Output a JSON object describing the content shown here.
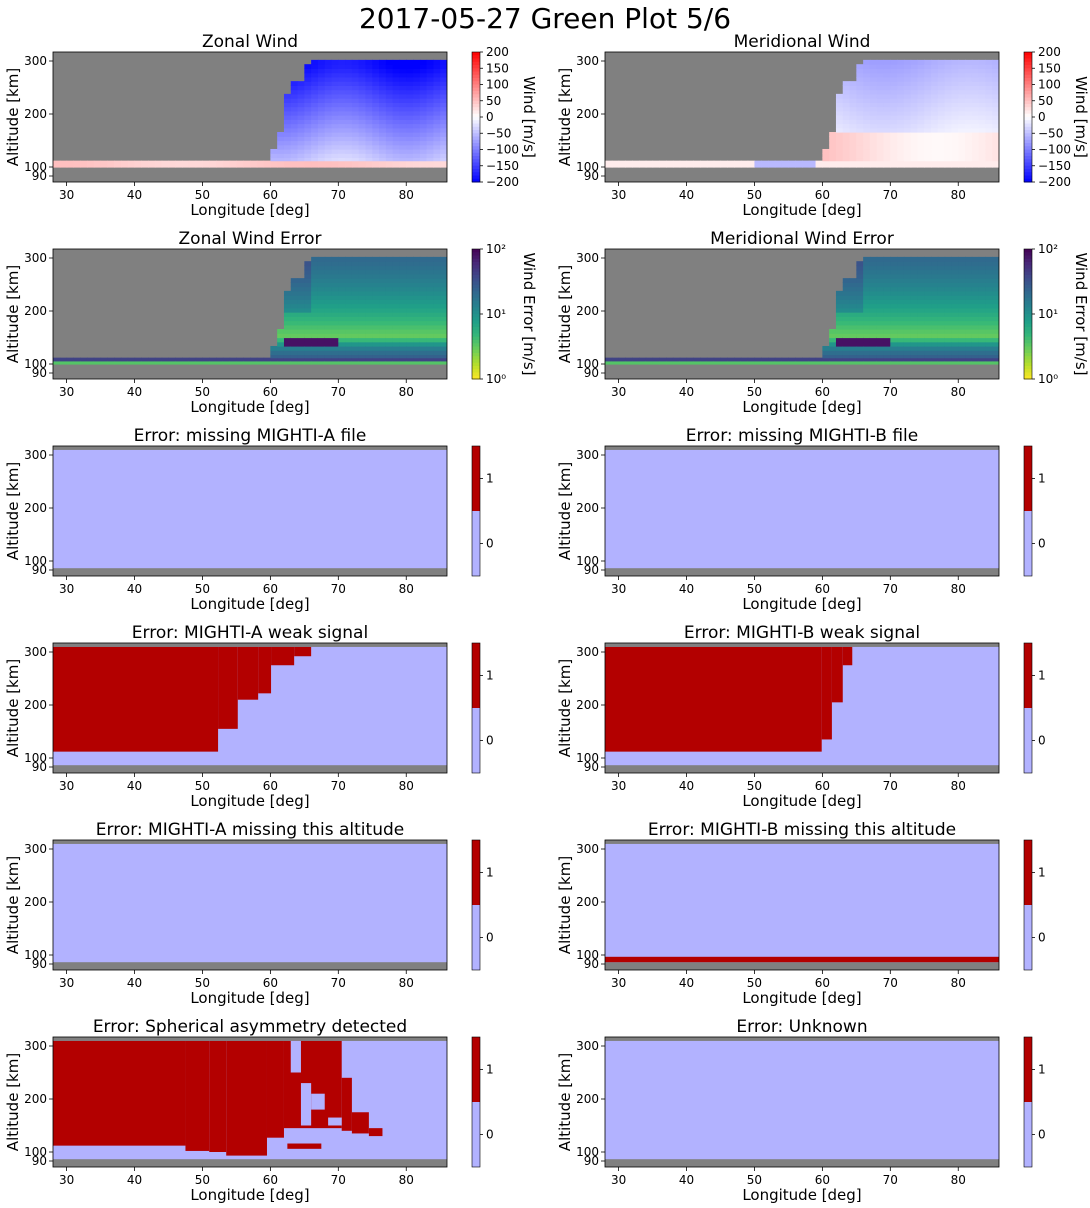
{
  "figure": {
    "title": "2017-05-27 Green Plot 5/6"
  },
  "colors": {
    "missing": "#808080",
    "flag_zero": "#b2b2ff",
    "flag_one": "#b30000",
    "wind_neg": "#0000ff",
    "wind_mid": "#ffffff",
    "wind_pos": "#ff0000"
  },
  "chart_data": [
    {
      "type": "heatmap",
      "title": "Zonal Wind",
      "xlabel": "Longitude [deg]",
      "ylabel": "Altitude [km]",
      "xlim": [
        28,
        86
      ],
      "ylim": [
        82,
        316
      ],
      "xticks": [
        "30",
        "40",
        "50",
        "60",
        "70",
        "80"
      ],
      "yticks": [
        "90",
        "100",
        "200",
        "300"
      ],
      "colorbar": {
        "label": "Wind [m/s]",
        "range": [
          -200,
          200
        ],
        "colormap": "bwr",
        "ticks": [
          "200",
          "150",
          "100",
          "50",
          "0",
          "−50",
          "−100",
          "−150",
          "−200"
        ]
      },
      "field": "zonal"
    },
    {
      "type": "heatmap",
      "title": "Meridional Wind",
      "xlabel": "Longitude [deg]",
      "ylabel": "Altitude [km]",
      "xlim": [
        28,
        86
      ],
      "ylim": [
        82,
        316
      ],
      "xticks": [
        "30",
        "40",
        "50",
        "60",
        "70",
        "80"
      ],
      "yticks": [
        "90",
        "100",
        "200",
        "300"
      ],
      "colorbar": {
        "label": "Wind [m/s]",
        "range": [
          -200,
          200
        ],
        "colormap": "bwr",
        "ticks": [
          "200",
          "150",
          "100",
          "50",
          "0",
          "−50",
          "−100",
          "−150",
          "−200"
        ]
      },
      "field": "meridional"
    },
    {
      "type": "heatmap",
      "title": "Zonal Wind Error",
      "xlabel": "Longitude [deg]",
      "ylabel": "Altitude [km]",
      "xlim": [
        28,
        86
      ],
      "ylim": [
        82,
        316
      ],
      "xticks": [
        "30",
        "40",
        "50",
        "60",
        "70",
        "80"
      ],
      "yticks": [
        "90",
        "100",
        "200",
        "300"
      ],
      "colorbar": {
        "label": "Wind Error [m/s]",
        "scale": "log",
        "range": [
          1,
          100
        ],
        "colormap": "viridis_r",
        "ticks": [
          "10²",
          "10¹",
          "10⁰"
        ]
      },
      "field": "error"
    },
    {
      "type": "heatmap",
      "title": "Meridional Wind Error",
      "xlabel": "Longitude [deg]",
      "ylabel": "Altitude [km]",
      "xlim": [
        28,
        86
      ],
      "ylim": [
        82,
        316
      ],
      "xticks": [
        "30",
        "40",
        "50",
        "60",
        "70",
        "80"
      ],
      "yticks": [
        "90",
        "100",
        "200",
        "300"
      ],
      "colorbar": {
        "label": "Wind Error [m/s]",
        "scale": "log",
        "range": [
          1,
          100
        ],
        "colormap": "viridis_r",
        "ticks": [
          "10²",
          "10¹",
          "10⁰"
        ]
      },
      "field": "error"
    },
    {
      "type": "heatmap",
      "title": "Error: missing MIGHTI-A file",
      "xlabel": "Longitude [deg]",
      "ylabel": "Altitude [km]",
      "xlim": [
        28,
        86
      ],
      "ylim": [
        82,
        316
      ],
      "xticks": [
        "30",
        "40",
        "50",
        "60",
        "70",
        "80"
      ],
      "yticks": [
        "90",
        "100",
        "200",
        "300"
      ],
      "colorbar": {
        "ticks": [
          "1",
          "0"
        ],
        "categories": [
          0,
          1
        ]
      },
      "flag_regions": []
    },
    {
      "type": "heatmap",
      "title": "Error: missing MIGHTI-B file",
      "xlabel": "Longitude [deg]",
      "ylabel": "Altitude [km]",
      "xlim": [
        28,
        86
      ],
      "ylim": [
        82,
        316
      ],
      "xticks": [
        "30",
        "40",
        "50",
        "60",
        "70",
        "80"
      ],
      "yticks": [
        "90",
        "100",
        "200",
        "300"
      ],
      "colorbar": {
        "ticks": [
          "1",
          "0"
        ],
        "categories": [
          0,
          1
        ]
      },
      "flag_regions": []
    },
    {
      "type": "heatmap",
      "title": "Error: MIGHTI-A weak signal",
      "xlabel": "Longitude [deg]",
      "ylabel": "Altitude [km]",
      "xlim": [
        28,
        86
      ],
      "ylim": [
        82,
        316
      ],
      "xticks": [
        "30",
        "40",
        "50",
        "60",
        "70",
        "80"
      ],
      "yticks": [
        "90",
        "100",
        "200",
        "300"
      ],
      "colorbar": {
        "ticks": [
          "1",
          "0"
        ],
        "categories": [
          0,
          1
        ]
      },
      "flag_regions": [
        {
          "lon": [
            28,
            52.3
          ],
          "alt": [
            112,
            309
          ]
        },
        {
          "lon": [
            52.3,
            55.2
          ],
          "alt": [
            155,
            309
          ]
        },
        {
          "lon": [
            55.2,
            58.2
          ],
          "alt": [
            210,
            309
          ]
        },
        {
          "lon": [
            58.2,
            60.1
          ],
          "alt": [
            222,
            309
          ]
        },
        {
          "lon": [
            60.1,
            63.5
          ],
          "alt": [
            275,
            309
          ]
        },
        {
          "lon": [
            63.5,
            66.0
          ],
          "alt": [
            292,
            309
          ]
        }
      ]
    },
    {
      "type": "heatmap",
      "title": "Error: MIGHTI-B weak signal",
      "xlabel": "Longitude [deg]",
      "ylabel": "Altitude [km]",
      "xlim": [
        28,
        86
      ],
      "ylim": [
        82,
        316
      ],
      "xticks": [
        "30",
        "40",
        "50",
        "60",
        "70",
        "80"
      ],
      "yticks": [
        "90",
        "100",
        "200",
        "300"
      ],
      "colorbar": {
        "ticks": [
          "1",
          "0"
        ],
        "categories": [
          0,
          1
        ]
      },
      "flag_regions": [
        {
          "lon": [
            28,
            59.9
          ],
          "alt": [
            112,
            309
          ]
        },
        {
          "lon": [
            59.9,
            61.4
          ],
          "alt": [
            135,
            309
          ]
        },
        {
          "lon": [
            61.4,
            63.0
          ],
          "alt": [
            205,
            309
          ]
        },
        {
          "lon": [
            63.0,
            64.4
          ],
          "alt": [
            275,
            309
          ]
        }
      ]
    },
    {
      "type": "heatmap",
      "title": "Error: MIGHTI-A missing this altitude",
      "xlabel": "Longitude [deg]",
      "ylabel": "Altitude [km]",
      "xlim": [
        28,
        86
      ],
      "ylim": [
        82,
        316
      ],
      "xticks": [
        "30",
        "40",
        "50",
        "60",
        "70",
        "80"
      ],
      "yticks": [
        "90",
        "100",
        "200",
        "300"
      ],
      "colorbar": {
        "ticks": [
          "1",
          "0"
        ],
        "categories": [
          0,
          1
        ]
      },
      "flag_regions": []
    },
    {
      "type": "heatmap",
      "title": "Error: MIGHTI-B missing this altitude",
      "xlabel": "Longitude [deg]",
      "ylabel": "Altitude [km]",
      "xlim": [
        28,
        86
      ],
      "ylim": [
        82,
        316
      ],
      "xticks": [
        "30",
        "40",
        "50",
        "60",
        "70",
        "80"
      ],
      "yticks": [
        "90",
        "100",
        "200",
        "300"
      ],
      "colorbar": {
        "ticks": [
          "1",
          "0"
        ],
        "categories": [
          0,
          1
        ]
      },
      "flag_regions": [
        {
          "lon": [
            28,
            86
          ],
          "alt": [
            92,
            98
          ]
        }
      ]
    },
    {
      "type": "heatmap",
      "title": "Error: Spherical asymmetry detected",
      "xlabel": "Longitude [deg]",
      "ylabel": "Altitude [km]",
      "xlim": [
        28,
        86
      ],
      "ylim": [
        82,
        316
      ],
      "xticks": [
        "30",
        "40",
        "50",
        "60",
        "70",
        "80"
      ],
      "yticks": [
        "90",
        "100",
        "200",
        "300"
      ],
      "colorbar": {
        "ticks": [
          "1",
          "0"
        ],
        "categories": [
          0,
          1
        ]
      },
      "flag_regions": [
        {
          "lon": [
            28,
            47.5
          ],
          "alt": [
            112,
            309
          ]
        },
        {
          "lon": [
            47.5,
            51.0
          ],
          "alt": [
            102,
            309
          ]
        },
        {
          "lon": [
            51.0,
            53.5
          ],
          "alt": [
            100,
            309
          ]
        },
        {
          "lon": [
            53.5,
            59.5
          ],
          "alt": [
            96,
            309
          ]
        },
        {
          "lon": [
            59.5,
            62.0
          ],
          "alt": [
            127,
            309
          ]
        },
        {
          "lon": [
            62.0,
            70.5
          ],
          "alt": [
            145,
            309
          ]
        },
        {
          "lon": [
            62.5,
            67.5
          ],
          "alt": [
            106,
            116
          ]
        },
        {
          "lon": [
            70.5,
            72.0
          ],
          "alt": [
            140,
            240
          ]
        },
        {
          "lon": [
            72.0,
            74.5
          ],
          "alt": [
            135,
            175
          ]
        },
        {
          "lon": [
            74.5,
            76.5
          ],
          "alt": [
            130,
            145
          ]
        }
      ],
      "clear_regions": [
        {
          "lon": [
            63.0,
            64.5
          ],
          "alt": [
            250,
            309
          ]
        },
        {
          "lon": [
            64.5,
            66.0
          ],
          "alt": [
            150,
            230
          ]
        },
        {
          "lon": [
            66.0,
            68.0
          ],
          "alt": [
            180,
            210
          ]
        },
        {
          "lon": [
            68.5,
            70.5
          ],
          "alt": [
            150,
            165
          ]
        }
      ]
    },
    {
      "type": "heatmap",
      "title": "Error: Unknown",
      "xlabel": "Longitude [deg]",
      "ylabel": "Altitude [km]",
      "xlim": [
        28,
        86
      ],
      "ylim": [
        82,
        316
      ],
      "xticks": [
        "30",
        "40",
        "50",
        "60",
        "70",
        "80"
      ],
      "yticks": [
        "90",
        "100",
        "200",
        "300"
      ],
      "colorbar": {
        "ticks": [
          "1",
          "0"
        ],
        "categories": [
          0,
          1
        ]
      },
      "flag_regions": []
    }
  ]
}
